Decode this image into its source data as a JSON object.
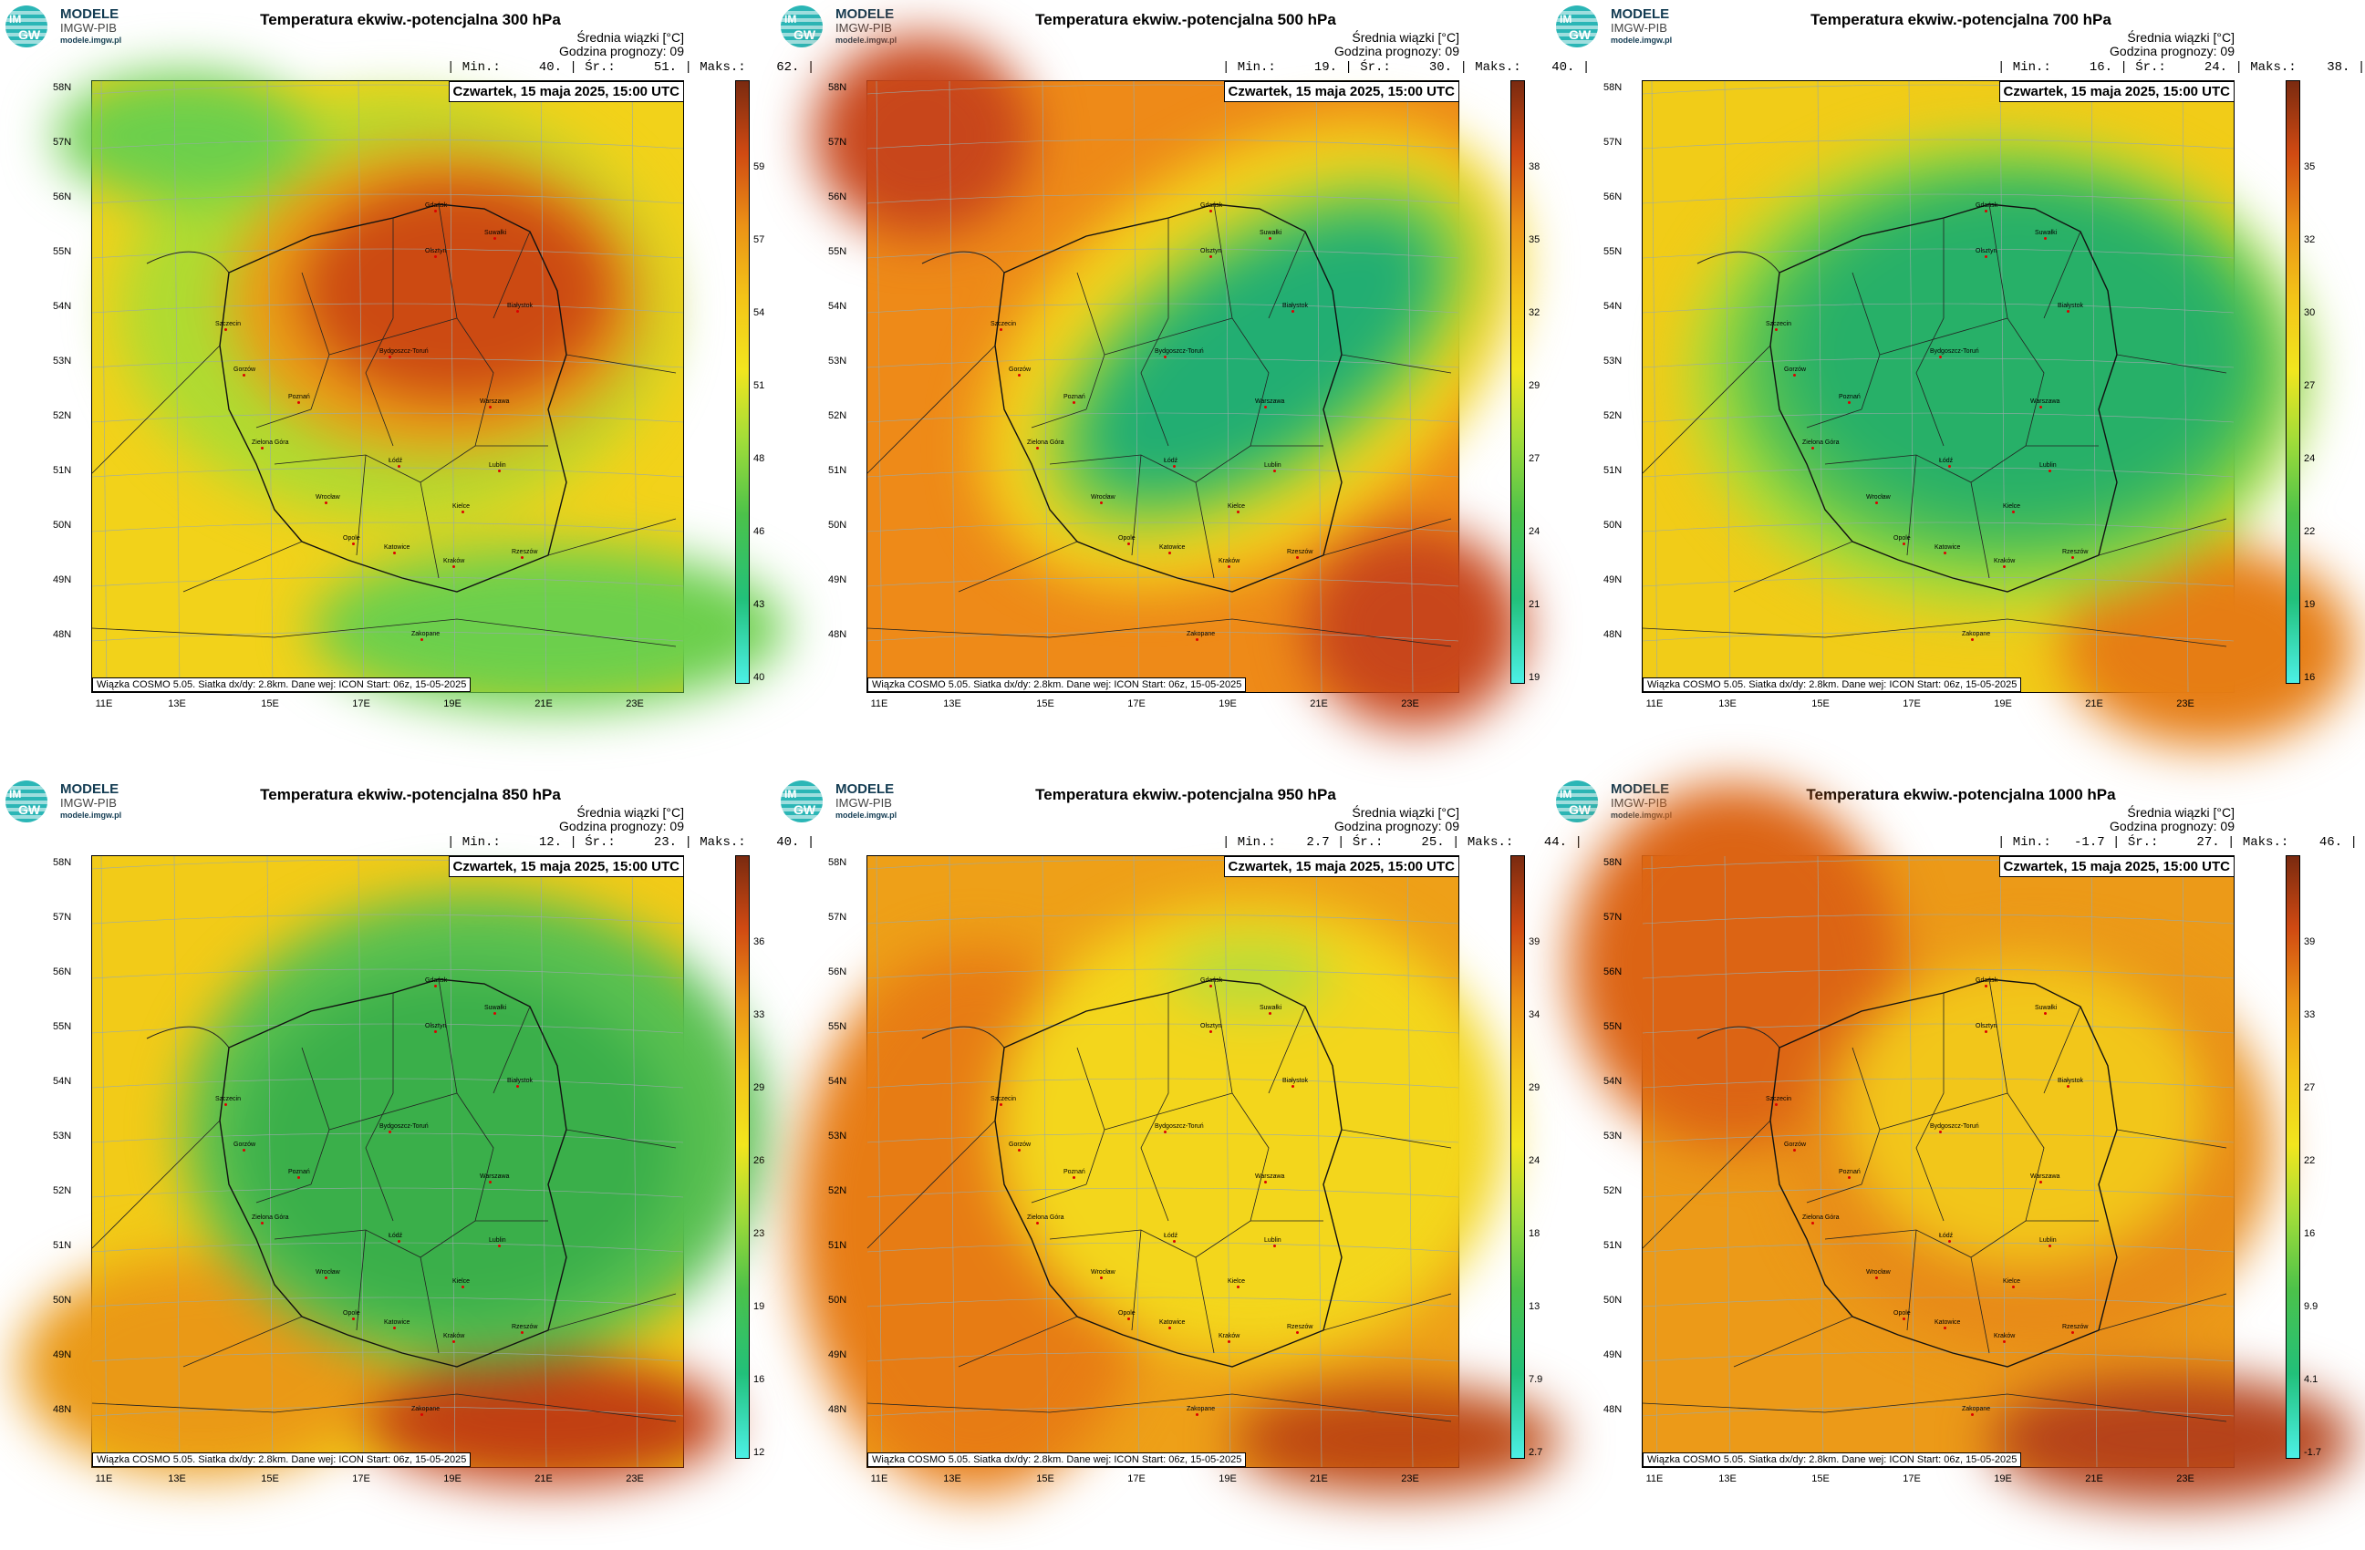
{
  "brand": {
    "title": "MODELE",
    "subtitle": "IMGW-PIB",
    "url": "modele.imgw.pl",
    "logo_top": "IM",
    "logo_bottom": "GW"
  },
  "common": {
    "average_label": "Średnia wiązki [°C]",
    "forecast_hour": "Godzina prognozy: 09",
    "date": "Czwartek, 15 maja 2025, 15:00 UTC",
    "footer": "Wiązka COSMO 5.05. Siatka dx/dy: 2.8km. Dane wej: ICON Start: 06z, 15-05-2025",
    "lat_labels": [
      "58N",
      "57N",
      "56N",
      "55N",
      "54N",
      "53N",
      "52N",
      "51N",
      "50N",
      "49N",
      "48N"
    ],
    "lon_labels": [
      "11E",
      "13E",
      "15E",
      "17E",
      "19E",
      "21E",
      "23E"
    ],
    "cities": [
      "Gdańsk",
      "Olsztyn",
      "Suwałki",
      "Białystok",
      "Szczecin",
      "Bydgoszcz-Toruń",
      "Gorzów",
      "Poznań",
      "Warszawa",
      "Zielona Góra",
      "Łódź",
      "Lublin",
      "Wrocław",
      "Opole",
      "Kielce",
      "Katowice",
      "Kraków",
      "Rzeszów",
      "Zakopane"
    ]
  },
  "panels": [
    {
      "title": "Temperatura ekwiw.-potencjalna 300 hPa",
      "stats": "| Min.:     40. | Śr.:     51. | Maks.:    62. |",
      "colorbar": [
        "59",
        "57",
        "54",
        "51",
        "48",
        "46",
        "43",
        "40"
      ],
      "colors": {
        "bg": "#f2d21a",
        "a": "#6ccf4c",
        "b": "#cc4a12",
        "c": "#ea9b16",
        "d": "#a7dc34"
      }
    },
    {
      "title": "Temperatura ekwiw.-potencjalna 500 hPa",
      "stats": "| Min.:     19. | Śr.:     30. | Maks.:    40. |",
      "colorbar": [
        "38",
        "35",
        "32",
        "29",
        "27",
        "24",
        "21",
        "19"
      ],
      "colors": {
        "bg": "#ee8a18",
        "a": "#c8461b",
        "b": "#22ae72",
        "c": "#f3d21c",
        "d": "#7ece48"
      }
    },
    {
      "title": "Temperatura ekwiw.-potencjalna 700 hPa",
      "stats": "| Min.:     16. | Śr.:     24. | Maks.:    38. |",
      "colorbar": [
        "35",
        "32",
        "30",
        "27",
        "24",
        "22",
        "19",
        "16"
      ],
      "colors": {
        "bg": "#f1cc18",
        "a": "#e67d14",
        "b": "#27b068",
        "c": "#52c054",
        "d": "#a9dc38"
      }
    },
    {
      "title": "Temperatura ekwiw.-potencjalna 850 hPa",
      "stats": "| Min.:     12. | Śr.:     23. | Maks.:    40. |",
      "colorbar": [
        "36",
        "33",
        "29",
        "26",
        "23",
        "19",
        "16",
        "12"
      ],
      "colors": {
        "bg": "#f2cb18",
        "a": "#ea9916",
        "b": "#3aaf4a",
        "c": "#59c050",
        "d": "#c13f12"
      }
    },
    {
      "title": "Temperatura ekwiw.-potencjalna 950 hPa",
      "stats": "| Min.:    2.7 | Śr.:     25. | Maks.:    44. |",
      "colorbar": [
        "39",
        "34",
        "29",
        "24",
        "18",
        "13",
        "7.9",
        "2.7"
      ],
      "colors": {
        "bg": "#eea018",
        "a": "#e77c14",
        "b": "#f3d61c",
        "c": "#b9dc3a",
        "d": "#bd4712"
      }
    },
    {
      "title": "Temperatura ekwiw.-potencjalna 1000 hPa",
      "stats": "| Min.:   -1.7 | Śr.:     27. | Maks.:    46. |",
      "colorbar": [
        "39",
        "33",
        "27",
        "22",
        "16",
        "9.9",
        "4.1",
        "-1.7"
      ],
      "colors": {
        "bg": "#ec9a18",
        "a": "#dc6414",
        "b": "#f2c61a",
        "c": "#e78918",
        "d": "#b5421a"
      }
    }
  ]
}
